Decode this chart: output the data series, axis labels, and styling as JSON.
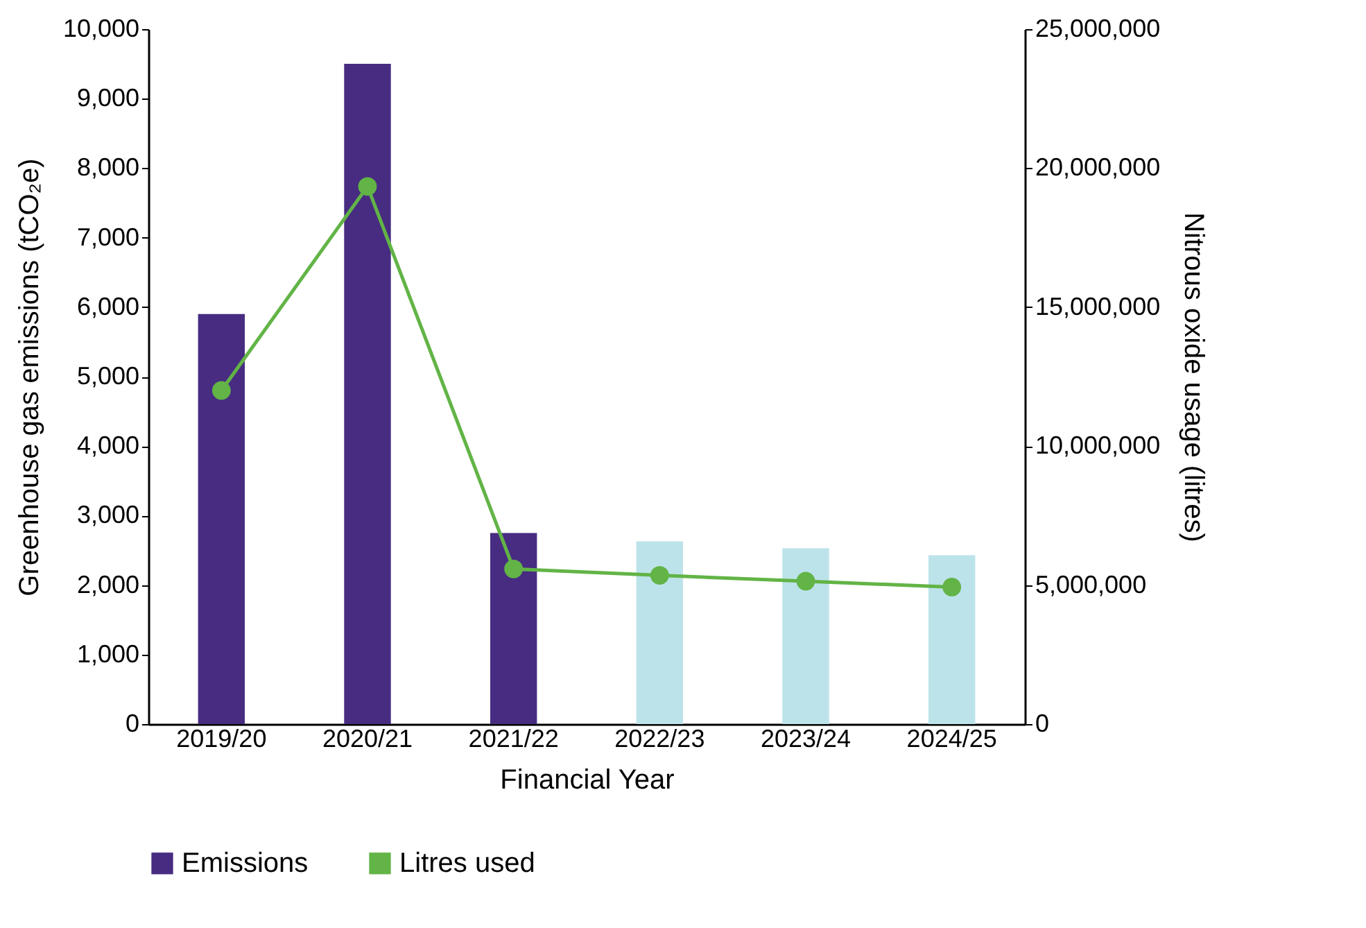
{
  "chart_data": {
    "type": "bar",
    "xlabel": "Financial Year",
    "ylabel": "Greenhouse gas emissions  (tCO₂e)",
    "y2label": "Nitrous oxide usage (litres)",
    "categories": [
      "2019/20",
      "2020/21",
      "2021/22",
      "2022/23",
      "2023/24",
      "2024/25"
    ],
    "series": [
      {
        "name": "Emissions",
        "color": "#472c82",
        "colors": [
          "#472c82",
          "#472c82",
          "#472c82",
          "#bde3ea",
          "#bde3ea",
          "#bde3ea"
        ],
        "values": [
          5900,
          9500,
          2750,
          2630,
          2530,
          2430
        ]
      },
      {
        "name": "Litres used",
        "type": "line",
        "axis": "y2",
        "color": "#62b446",
        "marker": "circle",
        "values": [
          12000000,
          19340000,
          5580000,
          5350000,
          5140000,
          4930000
        ]
      }
    ],
    "ylim": [
      0,
      10000
    ],
    "yticks": [
      0,
      {
        "value": 1000,
        "label": "1,000"
      },
      {
        "value": 2000,
        "label": "2,000"
      },
      {
        "value": 3000,
        "label": "3,000"
      },
      {
        "value": 4000,
        "label": "4,000"
      },
      {
        "value": 5000,
        "label": "5,000"
      },
      {
        "value": 6000,
        "label": "6,000"
      },
      {
        "value": 7000,
        "label": "7,000"
      },
      {
        "value": 8000,
        "label": "8,000"
      },
      {
        "value": 9000,
        "label": "9,000"
      },
      {
        "value": 10000,
        "label": "10,000"
      }
    ],
    "y2lim": [
      0,
      25000000
    ],
    "y2ticks": [
      0,
      {
        "value": 5000000,
        "label": "5,000,000"
      },
      {
        "value": 10000000,
        "label": "10,000,000"
      },
      {
        "value": 15000000,
        "label": "15,000,000"
      },
      {
        "value": 20000000,
        "label": "20,000,000"
      },
      {
        "value": 25000000,
        "label": "25,000,000"
      }
    ],
    "grid": false,
    "legend": "bottom"
  }
}
